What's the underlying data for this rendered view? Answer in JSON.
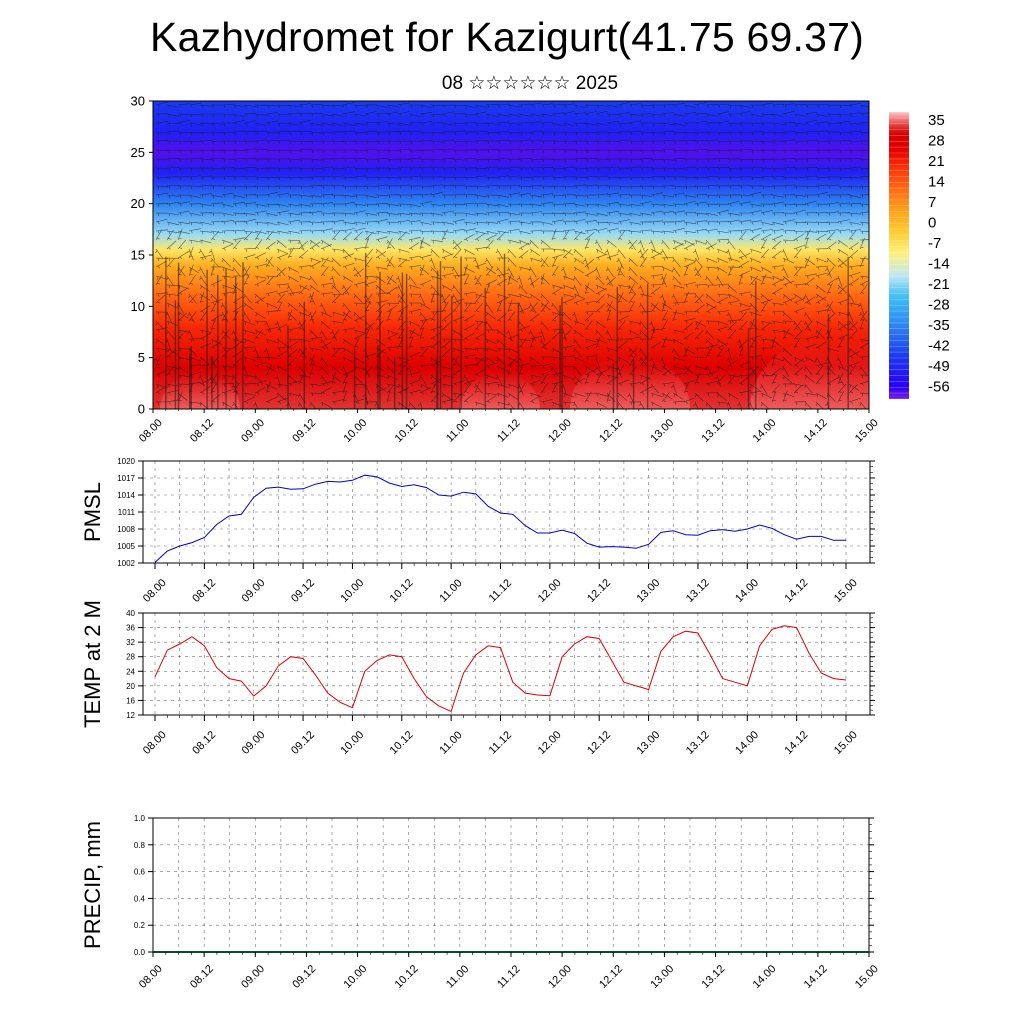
{
  "title": "Kazhydromet for Kazigurt(41.75 69.37)",
  "subtitle": "08 ☆☆☆☆☆☆ 2025",
  "time_ticks": [
    "08.00",
    "08.12",
    "09.00",
    "09.12",
    "10.00",
    "10.12",
    "11.00",
    "11.12",
    "12.00",
    "12.12",
    "13.00",
    "13.12",
    "14.00",
    "14.12",
    "15.00"
  ],
  "chart_data": [
    {
      "type": "heatmap",
      "name": "temperature-wind-cross-section",
      "ylim": [
        0,
        30
      ],
      "y_ticks": [
        0,
        5,
        10,
        15,
        20,
        25,
        30
      ],
      "colorbar": {
        "labels": [
          "35",
          "28",
          "21",
          "14",
          "7",
          "0",
          "-7",
          "-14",
          "-21",
          "-28",
          "-35",
          "-42",
          "-49",
          "-56"
        ],
        "range": [
          -60,
          38
        ]
      },
      "temperature_profile": [
        {
          "level": 0,
          "value": 33
        },
        {
          "level": 4,
          "value": 27
        },
        {
          "level": 8,
          "value": 20
        },
        {
          "level": 11,
          "value": 12
        },
        {
          "level": 14,
          "value": 2
        },
        {
          "level": 15.5,
          "value": -8
        },
        {
          "level": 17,
          "value": -20
        },
        {
          "level": 20,
          "value": -35
        },
        {
          "level": 23,
          "value": -50
        },
        {
          "level": 25,
          "value": -58
        },
        {
          "level": 27,
          "value": -50
        },
        {
          "level": 30,
          "value": -45
        }
      ]
    },
    {
      "type": "line",
      "ylabel": "PMSL",
      "ylim": [
        1002,
        1020
      ],
      "y_ticks": [
        1002,
        1005,
        1008,
        1011,
        1014,
        1017,
        1020
      ],
      "x_hours": [
        0,
        3,
        6,
        9,
        12,
        15,
        18,
        21,
        24,
        27,
        30,
        33,
        36,
        39,
        42,
        45,
        48,
        51,
        54,
        57,
        60,
        63,
        66,
        69,
        72,
        75,
        78,
        81,
        84,
        87,
        90,
        93,
        96,
        99,
        102,
        105,
        108,
        111,
        114,
        117,
        120,
        123,
        126,
        129,
        132,
        135,
        138,
        141,
        144,
        147,
        150,
        153,
        156,
        159,
        162,
        165,
        168
      ],
      "series": [
        {
          "color": "#0000cc",
          "values": [
            1002.1,
            1004.1,
            1005.0,
            1005.6,
            1006.5,
            1008.8,
            1010.3,
            1010.6,
            1013.6,
            1015.2,
            1015.4,
            1015.0,
            1015.1,
            1015.9,
            1016.4,
            1016.3,
            1016.6,
            1017.5,
            1017.2,
            1016.1,
            1015.5,
            1015.8,
            1015.3,
            1014.0,
            1013.8,
            1014.5,
            1014.2,
            1012.0,
            1010.8,
            1010.6,
            1008.6,
            1007.3,
            1007.3,
            1007.8,
            1007.2,
            1005.5,
            1004.8,
            1004.9,
            1004.8,
            1004.6,
            1005.3,
            1007.4,
            1007.7,
            1007.0,
            1006.9,
            1007.7,
            1007.9,
            1007.6,
            1008.0,
            1008.7,
            1008.1,
            1007.0,
            1006.2,
            1006.7,
            1006.7,
            1006.0,
            1006.0
          ]
        }
      ]
    },
    {
      "type": "line",
      "ylabel": "TEMP at 2 M",
      "ylim": [
        12,
        40
      ],
      "y_ticks": [
        12,
        16,
        20,
        24,
        28,
        32,
        36,
        40
      ],
      "x_hours": [
        0,
        3,
        6,
        9,
        12,
        15,
        18,
        21,
        24,
        27,
        30,
        33,
        36,
        39,
        42,
        45,
        48,
        51,
        54,
        57,
        60,
        63,
        66,
        69,
        72,
        75,
        78,
        81,
        84,
        87,
        90,
        93,
        96,
        99,
        102,
        105,
        108,
        111,
        114,
        117,
        120,
        123,
        126,
        129,
        132,
        135,
        138,
        141,
        144,
        147,
        150,
        153,
        156,
        159,
        162,
        165,
        168
      ],
      "series": [
        {
          "color": "#dd0000",
          "values": [
            22.5,
            29.8,
            31.5,
            33.5,
            31.0,
            25.0,
            22.0,
            21.3,
            17.2,
            20.0,
            25.5,
            28.0,
            27.5,
            23.0,
            18.0,
            15.5,
            14.0,
            24.0,
            27.0,
            28.5,
            28.0,
            22.0,
            17.0,
            14.5,
            13.0,
            23.5,
            28.5,
            31.0,
            30.5,
            21.0,
            18.0,
            17.5,
            17.3,
            28.0,
            31.5,
            33.5,
            33.0,
            27.0,
            21.0,
            20.0,
            19.0,
            29.5,
            33.5,
            35.0,
            34.5,
            28.5,
            22.0,
            21.0,
            20.0,
            31.0,
            35.5,
            36.5,
            36.0,
            29.0,
            23.5,
            22.0,
            21.6
          ]
        }
      ]
    },
    {
      "type": "bar",
      "ylabel": "PRECIP, mm",
      "ylim": [
        0,
        1
      ],
      "y_ticks": [
        "0.0",
        "0.2",
        "0.4",
        "0.6",
        "0.8",
        "1.0"
      ],
      "values": []
    }
  ]
}
